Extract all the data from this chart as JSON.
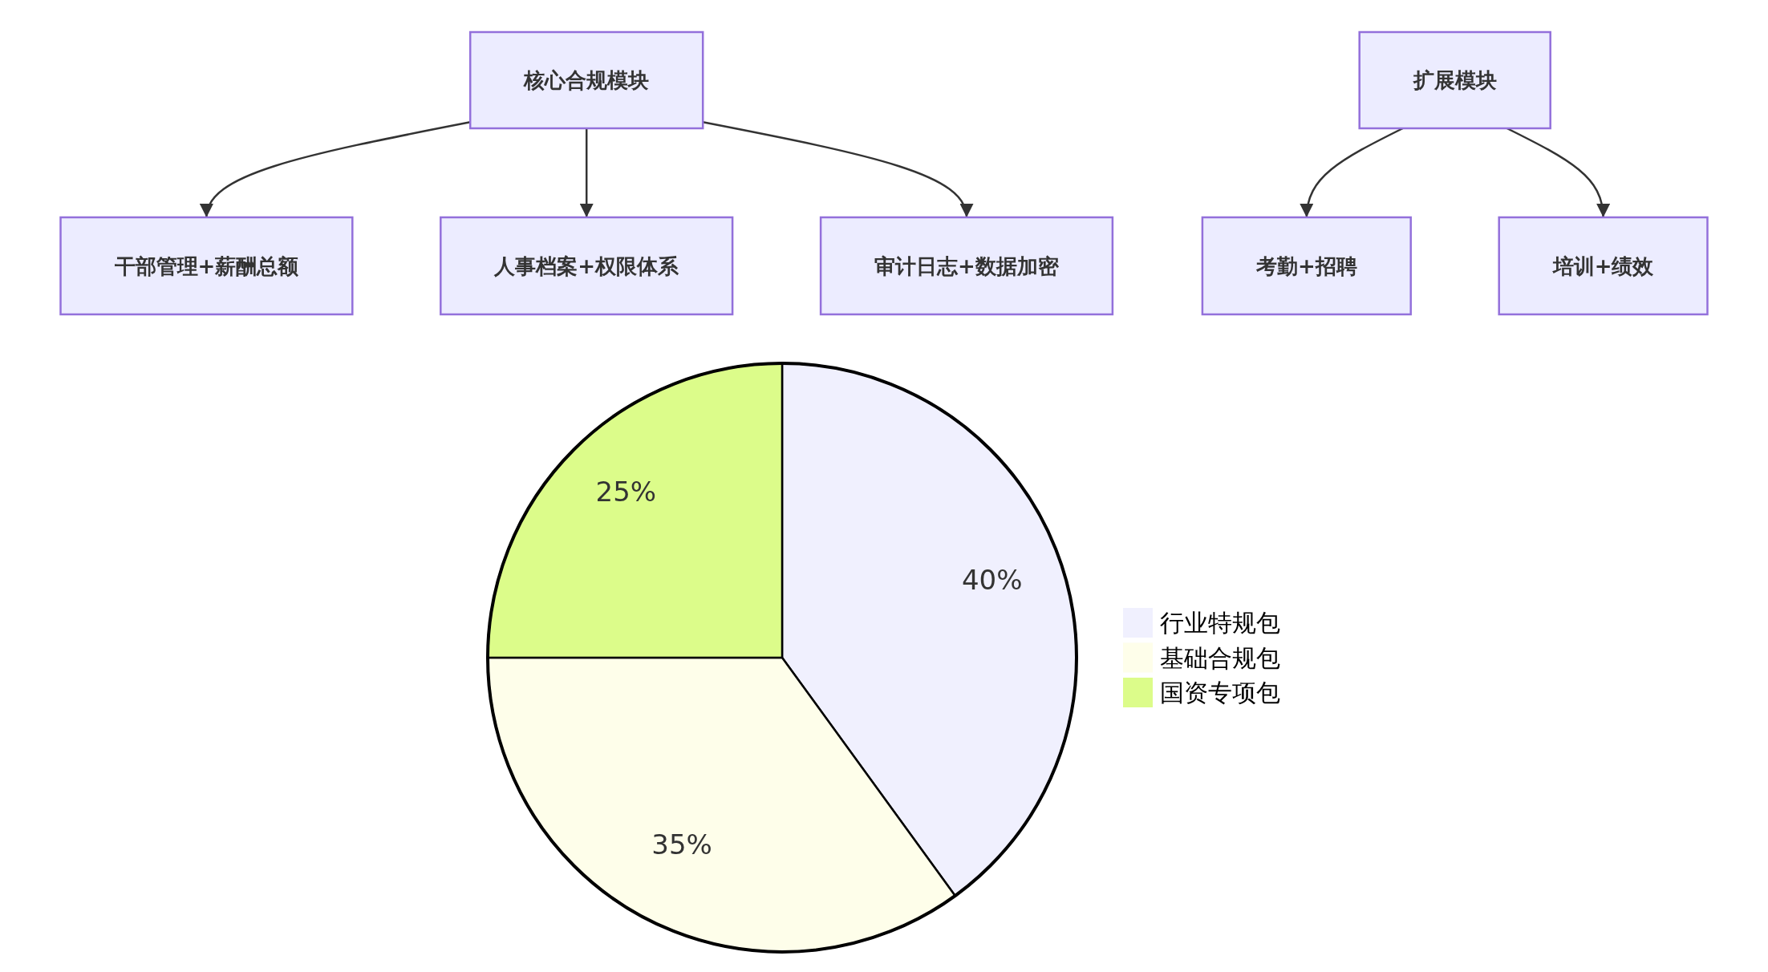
{
  "chart_data": [
    {
      "type": "other",
      "title": "核心合规模块",
      "categories": [
        "干部管理+薪酬总额",
        "人事档案+权限体系",
        "审计日志+数据加密"
      ]
    },
    {
      "type": "other",
      "title": "扩展模块",
      "categories": [
        "考勤+招聘",
        "培训+绩效"
      ]
    },
    {
      "type": "pie",
      "categories": [
        "行业特规包",
        "基础合规包",
        "国资专项包"
      ],
      "values": [
        40,
        35,
        25
      ],
      "value_labels": [
        "40%",
        "35%",
        "25%"
      ],
      "colors": [
        "#f0f0fe",
        "#fefeea",
        "#dcfc8a"
      ],
      "legend": "right"
    }
  ]
}
